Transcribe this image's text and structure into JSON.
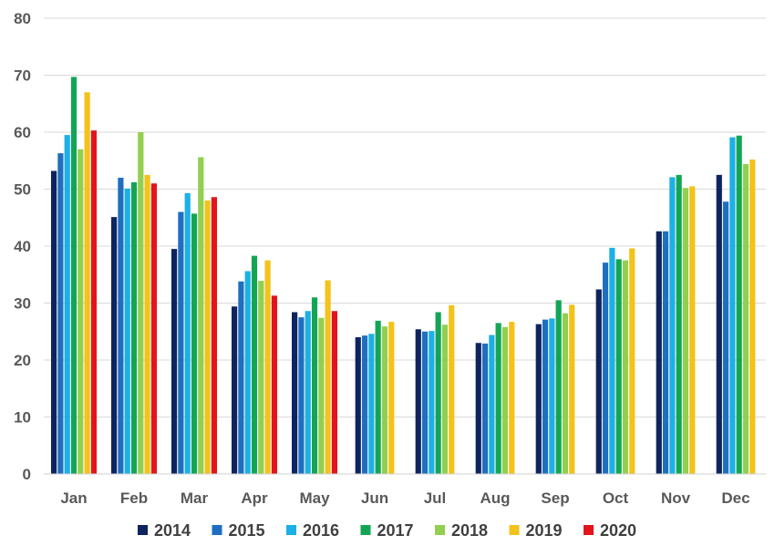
{
  "chart_data": {
    "type": "bar",
    "title": "",
    "xlabel": "",
    "ylabel": "",
    "ylim": [
      0,
      80
    ],
    "yticks": [
      0,
      10,
      20,
      30,
      40,
      50,
      60,
      70,
      80
    ],
    "grid": true,
    "legend_position": "bottom",
    "categories": [
      "Jan",
      "Feb",
      "Mar",
      "Apr",
      "May",
      "Jun",
      "Jul",
      "Aug",
      "Sep",
      "Oct",
      "Nov",
      "Dec"
    ],
    "series": [
      {
        "name": "2014",
        "color": "#0d2460",
        "values": [
          53.2,
          45.1,
          39.5,
          29.4,
          28.4,
          24.0,
          25.4,
          23.0,
          26.3,
          32.4,
          42.6,
          52.5
        ]
      },
      {
        "name": "2015",
        "color": "#1f6fc1",
        "values": [
          56.3,
          52.0,
          46.0,
          33.8,
          27.5,
          24.3,
          25.0,
          22.9,
          27.1,
          37.1,
          42.6,
          47.8
        ]
      },
      {
        "name": "2016",
        "color": "#1cb0e6",
        "values": [
          59.5,
          50.1,
          49.3,
          35.6,
          28.6,
          24.6,
          25.1,
          24.4,
          27.3,
          39.7,
          52.1,
          59.1
        ]
      },
      {
        "name": "2017",
        "color": "#13a555",
        "values": [
          69.7,
          51.2,
          45.7,
          38.3,
          31.0,
          26.9,
          28.4,
          26.5,
          30.5,
          37.7,
          52.5,
          59.4
        ]
      },
      {
        "name": "2018",
        "color": "#92cf50",
        "values": [
          57.0,
          60.0,
          55.6,
          33.9,
          27.4,
          25.9,
          26.2,
          25.8,
          28.2,
          37.5,
          50.2,
          54.4
        ]
      },
      {
        "name": "2019",
        "color": "#f3c21b",
        "values": [
          67.0,
          52.5,
          48.0,
          37.5,
          34.0,
          26.7,
          29.6,
          26.7,
          29.7,
          39.6,
          50.5,
          55.2
        ]
      },
      {
        "name": "2020",
        "color": "#e3141c",
        "values": [
          60.3,
          51.0,
          48.6,
          31.3,
          28.6,
          null,
          null,
          null,
          null,
          null,
          null,
          null
        ]
      }
    ]
  }
}
